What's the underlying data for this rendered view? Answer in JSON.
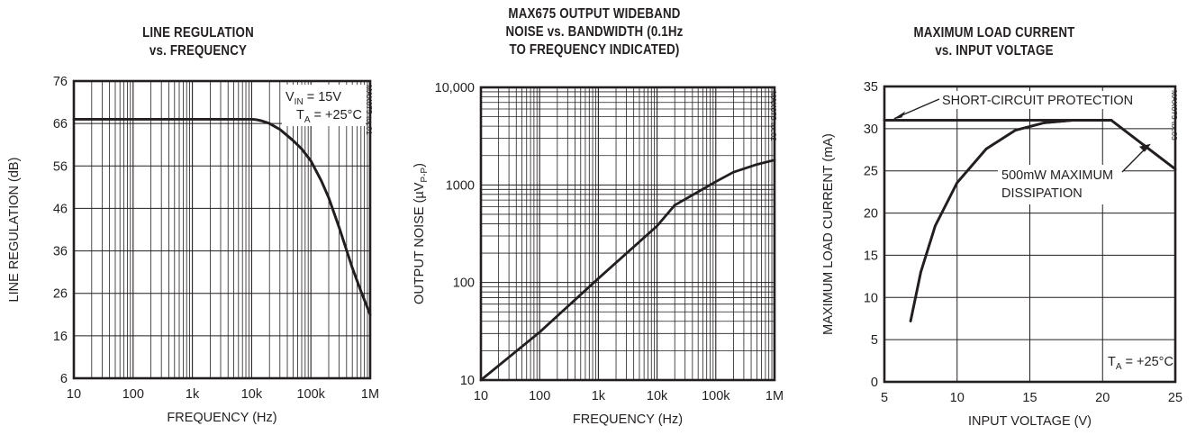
{
  "chart_data": [
    {
      "type": "line",
      "title_lines": [
        "LINE REGULATION",
        "vs. FREQUENCY"
      ],
      "xlabel": "FREQUENCY (Hz)",
      "ylabel": "LINE REGULATION (dB)",
      "xscale": "log",
      "xlim": [
        10,
        1000000
      ],
      "ylim": [
        6,
        76
      ],
      "xticks": [
        10,
        100,
        1000,
        10000,
        100000,
        1000000
      ],
      "xtick_labels": [
        "10",
        "100",
        "1k",
        "10k",
        "100k",
        "1M"
      ],
      "yticks": [
        6,
        16,
        26,
        36,
        46,
        56,
        66,
        76
      ],
      "ytick_labels": [
        "6",
        "16",
        "26",
        "36",
        "46",
        "56",
        "66",
        "76"
      ],
      "grid": true,
      "legend_label_vin": "V",
      "legend_label_vin_sub": "IN",
      "legend_label_vin_val": " = 15V",
      "legend_label_ta": "T",
      "legend_label_ta_sub": "A",
      "legend_label_ta_val": " = +25°C",
      "side_code": "MAX675 toc01",
      "series": [
        {
          "x": [
            10,
            100,
            1000,
            10000,
            12000,
            15000,
            20000,
            30000,
            50000,
            70000,
            100000,
            150000,
            200000,
            300000,
            500000,
            700000,
            1000000
          ],
          "y": [
            67,
            67,
            67,
            67,
            66.9,
            66.6,
            66,
            64.6,
            62,
            60,
            57.2,
            52.5,
            48.5,
            41.5,
            32,
            26.5,
            21
          ]
        }
      ]
    },
    {
      "type": "line",
      "title_lines": [
        "MAX675 OUTPUT WIDEBAND",
        "NOISE vs. BANDWIDTH (0.1Hz",
        "TO FREQUENCY INDICATED)"
      ],
      "xlabel": "FREQUENCY (Hz)",
      "ylabel_main": "OUTPUT NOISE (",
      "ylabel_mu": "µ",
      "ylabel_v": "V",
      "ylabel_sub": "P-P",
      "ylabel_end": ")",
      "xscale": "log",
      "yscale": "log",
      "xlim": [
        10,
        1000000
      ],
      "ylim": [
        10,
        10000
      ],
      "xticks": [
        10,
        100,
        1000,
        10000,
        100000,
        1000000
      ],
      "xtick_labels": [
        "10",
        "100",
        "1k",
        "10k",
        "100k",
        "1M"
      ],
      "yticks": [
        10,
        100,
        1000,
        10000
      ],
      "ytick_labels": [
        "10",
        "100",
        "1000",
        "10,000"
      ],
      "grid": true,
      "side_code": "MAX675 toc02",
      "series": [
        {
          "x": [
            10,
            100,
            1000,
            10000,
            20000,
            50000,
            100000,
            200000,
            500000,
            1000000
          ],
          "y": [
            10,
            31,
            110,
            380,
            620,
            850,
            1080,
            1350,
            1620,
            1800
          ]
        }
      ]
    },
    {
      "type": "line",
      "title_lines": [
        "MAXIMUM LOAD CURRENT",
        "vs. INPUT VOLTAGE"
      ],
      "xlabel": "INPUT VOLTAGE (V)",
      "ylabel": "MAXIMUM LOAD CURRENT (mA)",
      "xlim": [
        5,
        25
      ],
      "ylim": [
        0,
        35
      ],
      "xticks": [
        5,
        10,
        15,
        20,
        25
      ],
      "xtick_labels": [
        "5",
        "10",
        "15",
        "20",
        "25"
      ],
      "yticks": [
        0,
        5,
        10,
        15,
        20,
        25,
        30,
        35
      ],
      "ytick_labels": [
        "0",
        "5",
        "10",
        "15",
        "20",
        "25",
        "30",
        "35"
      ],
      "grid": true,
      "annotation_1": "SHORT-CIRCUIT PROTECTION",
      "annotation_2_line1": "500mW MAXIMUM",
      "annotation_2_line2": "DISSIPATION",
      "legend_label_ta": "T",
      "legend_label_ta_sub": "A",
      "legend_label_ta_val": " = +25°C",
      "side_code": "MAX675 toc03",
      "series": [
        {
          "name": "",
          "x": [
            5,
            20.6,
            25
          ],
          "y": [
            31,
            31,
            25.2
          ]
        },
        {
          "name": "",
          "x": [
            6.8,
            7.5,
            8.5,
            10,
            12,
            14,
            16,
            18,
            20.6
          ],
          "y": [
            7.2,
            13,
            18.5,
            23.6,
            27.6,
            29.8,
            30.7,
            31,
            31
          ]
        }
      ]
    }
  ]
}
